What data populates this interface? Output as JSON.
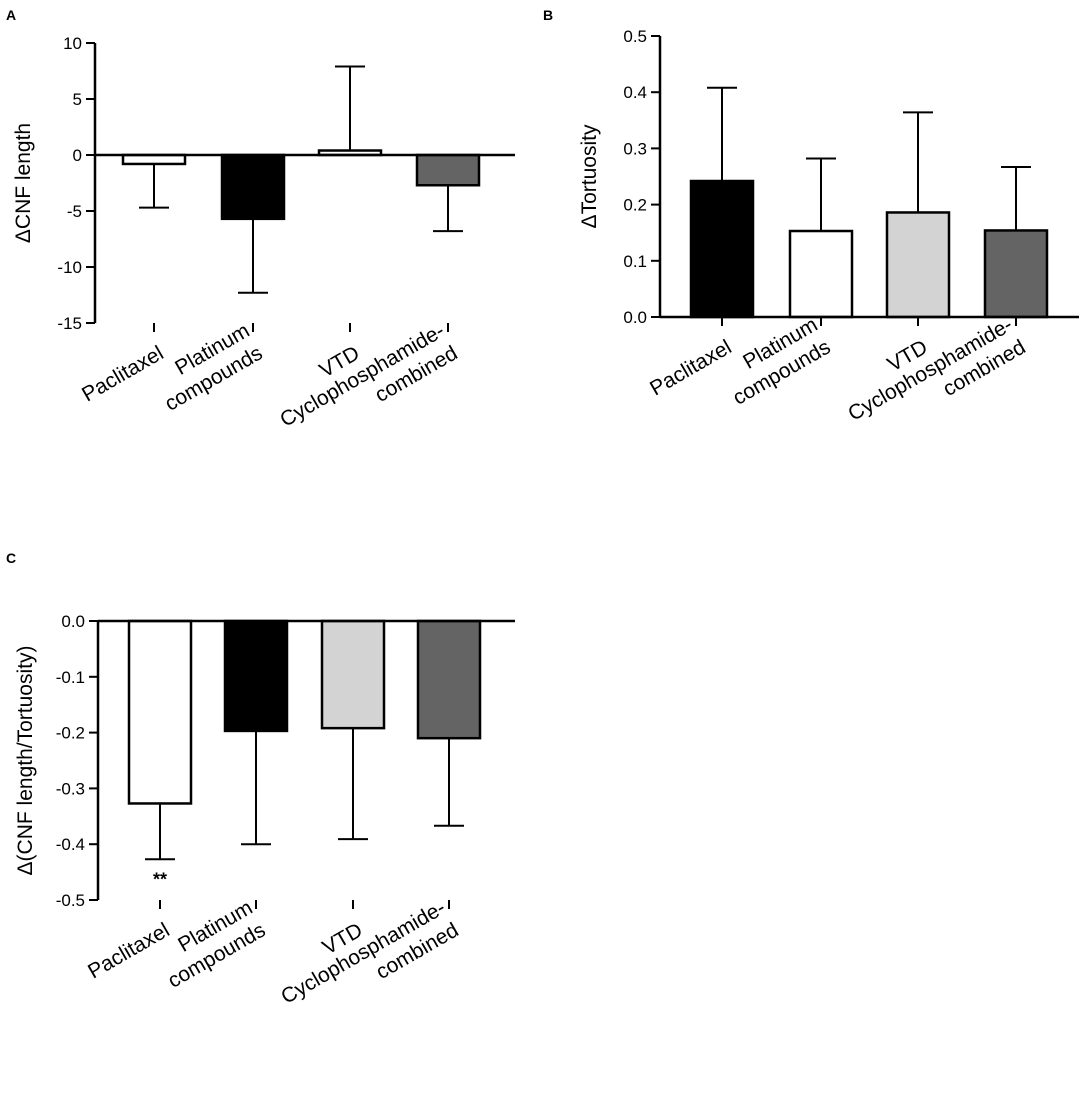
{
  "chart_data": [
    {
      "panel": "A",
      "type": "bar",
      "categories": [
        "Paclitaxel",
        "Platinum compounds",
        "VTD",
        "Cyclophosphamide-combined"
      ],
      "category_lines": [
        [
          "Paclitaxel"
        ],
        [
          "Platinum",
          "compounds"
        ],
        [
          "VTD"
        ],
        [
          "Cyclophosphamide-",
          "combined"
        ]
      ],
      "values": [
        -0.8,
        -5.7,
        0.4,
        -2.7
      ],
      "error_bars": [
        -4.7,
        -12.3,
        7.9,
        -6.8
      ],
      "bar_colors": [
        "#ffffff",
        "#000000",
        "#ffffff",
        "#646464"
      ],
      "ylabel": "ΔCNF length",
      "ylim": [
        -15,
        10
      ],
      "yticks": [
        10,
        5,
        0,
        -5,
        -10,
        -15
      ],
      "ytick_labels": [
        "10",
        "5",
        "0",
        "-5",
        "-10",
        "-15"
      ],
      "annotations": []
    },
    {
      "panel": "B",
      "type": "bar",
      "categories": [
        "Paclitaxel",
        "Platinum compounds",
        "VTD",
        "Cyclophosphamide-combined"
      ],
      "category_lines": [
        [
          "Paclitaxel"
        ],
        [
          "Platinum",
          "compounds"
        ],
        [
          "VTD"
        ],
        [
          "Cyclophosphamide-",
          "combined"
        ]
      ],
      "values": [
        0.242,
        0.153,
        0.186,
        0.154
      ],
      "error_bars": [
        0.408,
        0.282,
        0.364,
        0.267
      ],
      "bar_colors": [
        "#000000",
        "#ffffff",
        "#d3d3d3",
        "#646464"
      ],
      "ylabel": "ΔTortuosity",
      "ylim": [
        0,
        0.5
      ],
      "yticks": [
        0.5,
        0.4,
        0.3,
        0.2,
        0.1,
        0.0
      ],
      "ytick_labels": [
        "0.5",
        "0.4",
        "0.3",
        "0.2",
        "0.1",
        "0.0"
      ],
      "annotations": []
    },
    {
      "panel": "C",
      "type": "bar",
      "categories": [
        "Paclitaxel",
        "Platinum compounds",
        "VTD",
        "Cyclophosphamide-combined"
      ],
      "category_lines": [
        [
          "Paclitaxel"
        ],
        [
          "Platinum",
          "compounds"
        ],
        [
          "VTD"
        ],
        [
          "Cyclophosphamide-",
          "combined"
        ]
      ],
      "values": [
        -0.327,
        -0.197,
        -0.192,
        -0.21
      ],
      "error_bars": [
        -0.427,
        -0.4,
        -0.391,
        -0.367
      ],
      "bar_colors": [
        "#ffffff",
        "#000000",
        "#d3d3d3",
        "#646464"
      ],
      "ylabel": "Δ(CNF length/Tortuosity)",
      "ylim": [
        -0.5,
        0
      ],
      "yticks": [
        0.0,
        -0.1,
        -0.2,
        -0.3,
        -0.4,
        -0.5
      ],
      "ytick_labels": [
        "0.0",
        "-0.1",
        "-0.2",
        "-0.3",
        "-0.4",
        "-0.5"
      ],
      "annotations": [
        {
          "category_index": 0,
          "text": "**"
        }
      ]
    }
  ]
}
